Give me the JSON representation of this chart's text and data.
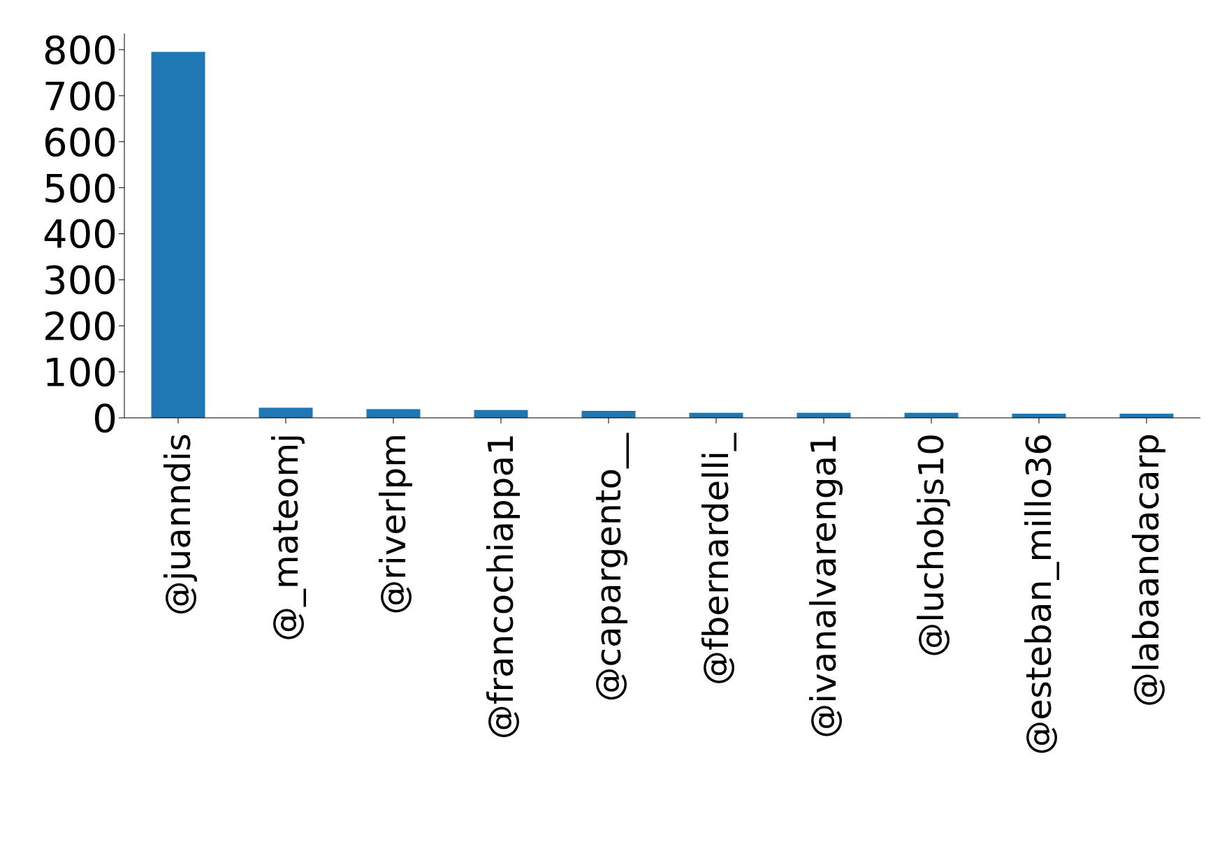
{
  "chart_data": {
    "type": "bar",
    "categories": [
      "@juanndis",
      "@_mateomj",
      "@riverlpm",
      "@francochiappa1",
      "@capargento__",
      "@fbernardelli_",
      "@ivanalvarenga1",
      "@luchobjs10",
      "@esteban_millo36",
      "@labaandacarp"
    ],
    "values": [
      795,
      22,
      19,
      17,
      15,
      11,
      11,
      11,
      9,
      9
    ],
    "color": "#1f77b4",
    "ylim": [
      0,
      835
    ],
    "yticks": [
      0,
      100,
      200,
      300,
      400,
      500,
      600,
      700,
      800
    ],
    "grid": false,
    "legend": false
  }
}
